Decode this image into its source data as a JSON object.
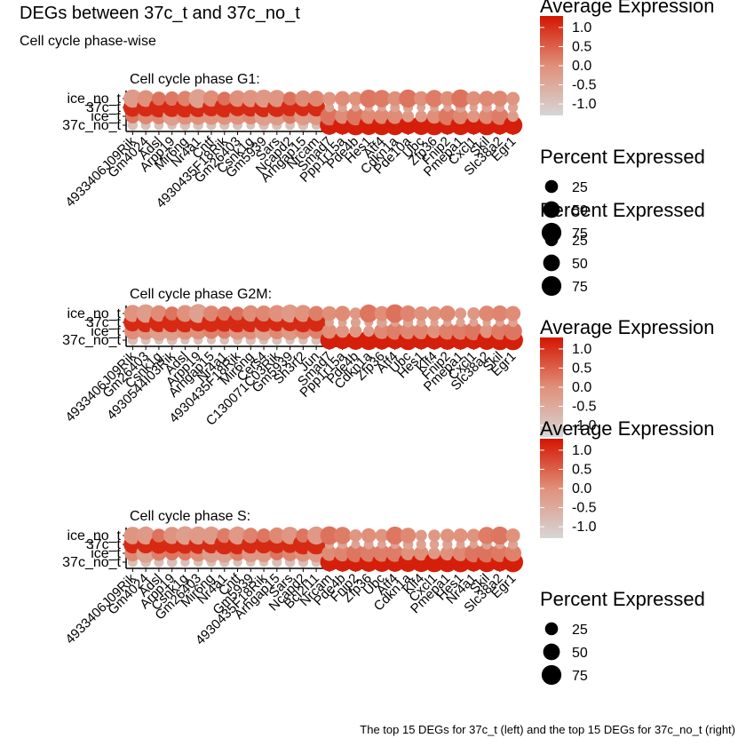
{
  "title": "DEGs between 37c_t and 37c_no_t",
  "subtitle": "Cell cycle phase-wise",
  "caption": "The top 15 DEGs for 37c_t (left) and the top 15 DEGs for 37c_no_t (right)",
  "colors": {
    "high": "#d41500",
    "mid": "#e0907a",
    "low": "#d6d6d6"
  },
  "chart_data": [
    {
      "type": "dotplot",
      "title": "Cell cycle phase G1:",
      "y_categories": [
        "37c_no_t",
        "ice_t",
        "37c_t",
        "ice_no_t"
      ],
      "x_categories": [
        "4933406J09Rik",
        "Gm4024",
        "Adsl",
        "Arpp19",
        "Mir6ng",
        "Nr4a1",
        "Cntf",
        "4930435F18Rik",
        "Gm26403",
        "Csnk1g",
        "Gm5939",
        "Sars",
        "Ncapd2",
        "Arhgap15",
        "Nrcam",
        "Smad7",
        "Ppp1r15a",
        "Pde4b",
        "Hes1",
        "Atf4",
        "Cdkn1a",
        "Pde10a",
        "Ubc",
        "Zfp36",
        "Fnip2",
        "Pmepa1",
        "Cxcl1",
        "Skil",
        "Slc38a2",
        "Egr1"
      ],
      "legend": {
        "color_title": "Average Expression",
        "color_ticks": [
          1.0,
          0.5,
          0.0,
          -0.5,
          -1.0
        ],
        "size_title": "Percent Expressed",
        "size_ticks": [
          25,
          50,
          75
        ]
      }
    },
    {
      "type": "dotplot",
      "title": "Cell cycle phase G2M:",
      "y_categories": [
        "37c_no_t",
        "ice_t",
        "37c_t",
        "ice_no_t"
      ],
      "x_categories": [
        "4933406J09Rik",
        "Gm26403",
        "Csnk1g",
        "4930544I03Rik",
        "Adsl",
        "Arpp19",
        "Arhgap15",
        "Nr4a1",
        "4930435F18Rik",
        "Mir6ng",
        "Cers4",
        "C130071C03Rik",
        "Gm5939",
        "Sh3rf2",
        "Jun",
        "Smad7",
        "Ppp1r15a",
        "Pde4b",
        "Cdkn1a",
        "Zfp36",
        "Atf4",
        "Ubc",
        "Hes1",
        "Klf4",
        "Fnip2",
        "Pmepa1",
        "Cxcl1",
        "Slc38a2",
        "Skil",
        "Egr1"
      ],
      "legend": {
        "color_title": "Average Expression",
        "color_ticks": [
          1.0,
          0.5,
          0.0,
          -0.5,
          -1.0
        ],
        "size_title": "",
        "size_ticks": []
      }
    },
    {
      "type": "dotplot",
      "title": "Cell cycle phase S:",
      "y_categories": [
        "37c_no_t",
        "ice_t",
        "37c_t",
        "ice_no_t"
      ],
      "x_categories": [
        "4933406J09Rik",
        "Gm4024",
        "Adsl",
        "Arpp19",
        "Csnk1g",
        "Gm26403",
        "Mir6ng",
        "Nr4a1",
        "Cntf",
        "Gm5939",
        "4930435F18Rik",
        "Arhgap15",
        "Sars",
        "Ncapd2",
        "Bcl2l11",
        "Nrcam",
        "Pde4b",
        "Fnip2",
        "Zfp36",
        "Ubc",
        "Atf4",
        "Cdkn1a",
        "Klf4",
        "Cxcl1",
        "Pmepa1",
        "Hes1",
        "Nr4a1",
        "Skil",
        "Slc38a2",
        "Egr1"
      ],
      "legend": {
        "color_title": "Average Expression",
        "color_ticks": [
          1.0,
          0.5,
          0.0,
          -0.5,
          -1.0
        ],
        "size_title": "Percent Expressed",
        "size_ticks": [
          25,
          50,
          75
        ]
      }
    }
  ]
}
